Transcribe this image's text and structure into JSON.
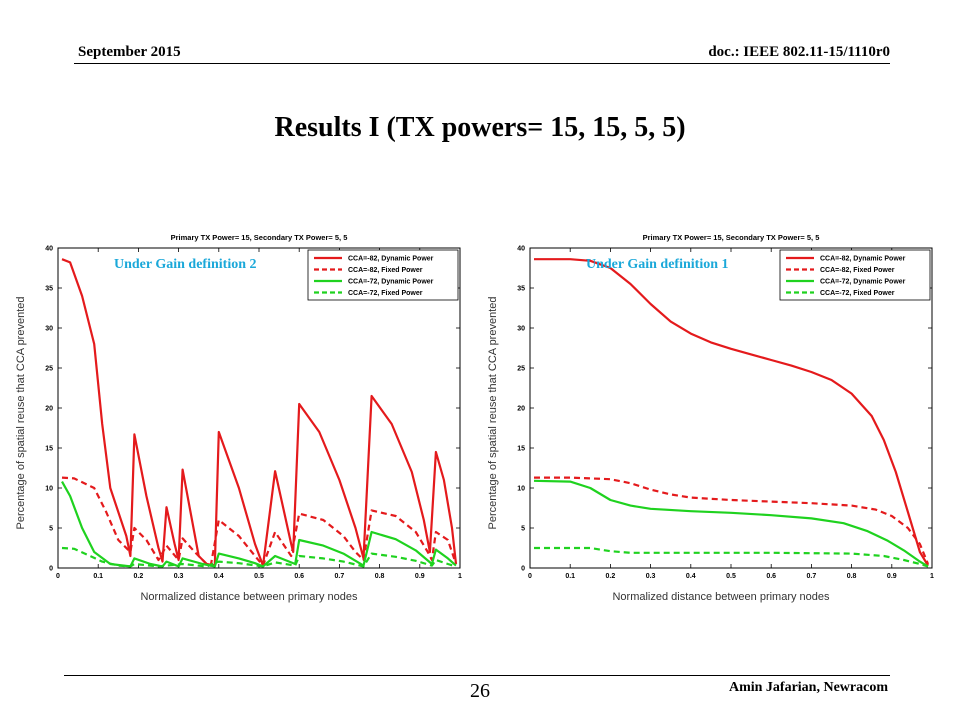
{
  "header": {
    "date": "September 2015",
    "doc_id": "doc.: IEEE 802.11-15/1110r0"
  },
  "slide": {
    "title": "Results I (TX powers= 15, 15, 5, 5)",
    "page_number": "26",
    "author": "Amin Jafarian, Newracom"
  },
  "colors": {
    "red": "#e41a1c",
    "green": "#1fd21f",
    "annotation": "#1ba8d9"
  },
  "chart_data": [
    {
      "type": "line",
      "title": "Primary TX Power= 15, Secondary TX Power= 5, 5",
      "annotation": "Under Gain definition 2",
      "xlabel": "Normalized distance between primary nodes",
      "ylabel": "Percentage of spatial reuse that CCA prevented",
      "xlim": [
        0,
        1
      ],
      "ylim": [
        0,
        40
      ],
      "xticks": [
        "0",
        "0.1",
        "0.2",
        "0.3",
        "0.4",
        "0.5",
        "0.6",
        "0.7",
        "0.8",
        "0.9",
        "1"
      ],
      "yticks": [
        "0",
        "5",
        "10",
        "15",
        "20",
        "25",
        "30",
        "35",
        "40"
      ],
      "legend_position": "top-right",
      "series": [
        {
          "name": "CCA=-82, Dynamic Power",
          "color": "red",
          "dash": "solid",
          "points": [
            [
              0.01,
              38.6
            ],
            [
              0.03,
              38.2
            ],
            [
              0.06,
              34
            ],
            [
              0.09,
              28
            ],
            [
              0.11,
              18
            ],
            [
              0.13,
              10
            ],
            [
              0.17,
              4
            ],
            [
              0.18,
              1.5
            ],
            [
              0.19,
              16.7
            ],
            [
              0.22,
              9
            ],
            [
              0.25,
              2.5
            ],
            [
              0.26,
              0.8
            ],
            [
              0.27,
              7.6
            ],
            [
              0.29,
              3
            ],
            [
              0.3,
              1
            ],
            [
              0.31,
              12.3
            ],
            [
              0.35,
              1.5
            ],
            [
              0.37,
              0.5
            ],
            [
              0.39,
              0.3
            ],
            [
              0.4,
              17
            ],
            [
              0.45,
              10
            ],
            [
              0.49,
              3
            ],
            [
              0.51,
              0.3
            ],
            [
              0.54,
              12.1
            ],
            [
              0.58,
              3
            ],
            [
              0.585,
              2
            ],
            [
              0.6,
              20.5
            ],
            [
              0.65,
              17
            ],
            [
              0.7,
              11
            ],
            [
              0.74,
              5
            ],
            [
              0.76,
              1.2
            ],
            [
              0.78,
              21.5
            ],
            [
              0.83,
              18
            ],
            [
              0.88,
              12
            ],
            [
              0.91,
              6
            ],
            [
              0.925,
              2
            ],
            [
              0.94,
              14.5
            ],
            [
              0.96,
              11
            ],
            [
              0.98,
              5
            ],
            [
              0.99,
              0.5
            ]
          ]
        },
        {
          "name": "CCA=-82, Fixed Power",
          "color": "red",
          "dash": "dashed",
          "points": [
            [
              0.01,
              11.3
            ],
            [
              0.04,
              11.2
            ],
            [
              0.09,
              10
            ],
            [
              0.12,
              7
            ],
            [
              0.15,
              3.5
            ],
            [
              0.18,
              2
            ],
            [
              0.19,
              5
            ],
            [
              0.22,
              3.5
            ],
            [
              0.25,
              1
            ],
            [
              0.27,
              2.8
            ],
            [
              0.3,
              1
            ],
            [
              0.31,
              3.7
            ],
            [
              0.34,
              2
            ],
            [
              0.37,
              0.5
            ],
            [
              0.38,
              0.3
            ],
            [
              0.4,
              6
            ],
            [
              0.45,
              4
            ],
            [
              0.49,
              1.5
            ],
            [
              0.51,
              0.3
            ],
            [
              0.54,
              4.5
            ],
            [
              0.58,
              1.5
            ],
            [
              0.6,
              6.8
            ],
            [
              0.66,
              6
            ],
            [
              0.71,
              4
            ],
            [
              0.74,
              2
            ],
            [
              0.76,
              1
            ],
            [
              0.78,
              7.2
            ],
            [
              0.84,
              6.5
            ],
            [
              0.89,
              4.5
            ],
            [
              0.92,
              2
            ],
            [
              0.93,
              1
            ],
            [
              0.94,
              4.5
            ],
            [
              0.97,
              3.5
            ],
            [
              0.99,
              0.5
            ]
          ]
        },
        {
          "name": "CCA=-72, Dynamic Power",
          "color": "green",
          "dash": "solid",
          "points": [
            [
              0.01,
              10.8
            ],
            [
              0.03,
              9
            ],
            [
              0.06,
              5
            ],
            [
              0.09,
              2
            ],
            [
              0.13,
              0.5
            ],
            [
              0.18,
              0.2
            ],
            [
              0.19,
              1.2
            ],
            [
              0.23,
              0.5
            ],
            [
              0.26,
              0.2
            ],
            [
              0.27,
              0.8
            ],
            [
              0.3,
              0.2
            ],
            [
              0.31,
              1.2
            ],
            [
              0.36,
              0.5
            ],
            [
              0.39,
              0.2
            ],
            [
              0.4,
              1.8
            ],
            [
              0.45,
              1.2
            ],
            [
              0.49,
              0.6
            ],
            [
              0.51,
              0.2
            ],
            [
              0.54,
              1.5
            ],
            [
              0.59,
              0.5
            ],
            [
              0.6,
              3.5
            ],
            [
              0.66,
              2.8
            ],
            [
              0.71,
              1.8
            ],
            [
              0.76,
              0.3
            ],
            [
              0.78,
              4.5
            ],
            [
              0.84,
              3.6
            ],
            [
              0.89,
              2.2
            ],
            [
              0.93,
              0.5
            ],
            [
              0.94,
              2.3
            ],
            [
              0.97,
              1.2
            ],
            [
              0.99,
              0.3
            ]
          ]
        },
        {
          "name": "CCA=-72, Fixed Power",
          "color": "green",
          "dash": "dashed",
          "points": [
            [
              0.01,
              2.5
            ],
            [
              0.04,
              2.4
            ],
            [
              0.08,
              1.5
            ],
            [
              0.11,
              0.8
            ],
            [
              0.15,
              0.3
            ],
            [
              0.18,
              0.2
            ],
            [
              0.19,
              0.5
            ],
            [
              0.25,
              0.2
            ],
            [
              0.27,
              0.3
            ],
            [
              0.31,
              0.5
            ],
            [
              0.37,
              0.2
            ],
            [
              0.4,
              0.8
            ],
            [
              0.45,
              0.6
            ],
            [
              0.51,
              0.2
            ],
            [
              0.54,
              0.7
            ],
            [
              0.59,
              0.3
            ],
            [
              0.6,
              1.5
            ],
            [
              0.66,
              1.2
            ],
            [
              0.71,
              0.8
            ],
            [
              0.76,
              0.2
            ],
            [
              0.78,
              1.8
            ],
            [
              0.84,
              1.4
            ],
            [
              0.89,
              0.9
            ],
            [
              0.93,
              0.3
            ],
            [
              0.94,
              1
            ],
            [
              0.97,
              0.5
            ],
            [
              0.99,
              0.2
            ]
          ]
        }
      ]
    },
    {
      "type": "line",
      "title": "Primary TX Power= 15, Secondary TX Power= 5, 5",
      "annotation": "Under Gain definition 1",
      "xlabel": "Normalized distance between primary nodes",
      "ylabel": "Percentage of spatial reuse that CCA prevented",
      "xlim": [
        0,
        1
      ],
      "ylim": [
        0,
        40
      ],
      "xticks": [
        "0",
        "0.1",
        "0.2",
        "0.3",
        "0.4",
        "0.5",
        "0.6",
        "0.7",
        "0.8",
        "0.9",
        "1"
      ],
      "yticks": [
        "0",
        "5",
        "10",
        "15",
        "20",
        "25",
        "30",
        "35",
        "40"
      ],
      "legend_position": "top-right",
      "series": [
        {
          "name": "CCA=-82, Dynamic Power",
          "color": "red",
          "dash": "solid",
          "points": [
            [
              0.01,
              38.6
            ],
            [
              0.1,
              38.6
            ],
            [
              0.15,
              38.4
            ],
            [
              0.2,
              37.5
            ],
            [
              0.25,
              35.5
            ],
            [
              0.3,
              33
            ],
            [
              0.35,
              30.8
            ],
            [
              0.4,
              29.3
            ],
            [
              0.45,
              28.2
            ],
            [
              0.5,
              27.4
            ],
            [
              0.55,
              26.7
            ],
            [
              0.6,
              26
            ],
            [
              0.65,
              25.3
            ],
            [
              0.7,
              24.5
            ],
            [
              0.75,
              23.5
            ],
            [
              0.8,
              21.8
            ],
            [
              0.85,
              19
            ],
            [
              0.88,
              16
            ],
            [
              0.91,
              12
            ],
            [
              0.94,
              7
            ],
            [
              0.97,
              2
            ],
            [
              0.99,
              0.3
            ]
          ]
        },
        {
          "name": "CCA=-82, Fixed Power",
          "color": "red",
          "dash": "dashed",
          "points": [
            [
              0.01,
              11.3
            ],
            [
              0.1,
              11.3
            ],
            [
              0.2,
              11.1
            ],
            [
              0.25,
              10.6
            ],
            [
              0.3,
              9.8
            ],
            [
              0.35,
              9.2
            ],
            [
              0.4,
              8.8
            ],
            [
              0.5,
              8.5
            ],
            [
              0.6,
              8.3
            ],
            [
              0.7,
              8.1
            ],
            [
              0.8,
              7.8
            ],
            [
              0.86,
              7.3
            ],
            [
              0.9,
              6.5
            ],
            [
              0.94,
              5
            ],
            [
              0.97,
              3
            ],
            [
              0.99,
              0.5
            ]
          ]
        },
        {
          "name": "CCA=-72, Dynamic Power",
          "color": "green",
          "dash": "solid",
          "points": [
            [
              0.01,
              10.9
            ],
            [
              0.1,
              10.8
            ],
            [
              0.15,
              10
            ],
            [
              0.2,
              8.5
            ],
            [
              0.25,
              7.8
            ],
            [
              0.3,
              7.4
            ],
            [
              0.4,
              7.1
            ],
            [
              0.5,
              6.9
            ],
            [
              0.6,
              6.6
            ],
            [
              0.7,
              6.2
            ],
            [
              0.78,
              5.6
            ],
            [
              0.84,
              4.6
            ],
            [
              0.89,
              3.4
            ],
            [
              0.93,
              2.2
            ],
            [
              0.97,
              0.8
            ],
            [
              0.99,
              0.2
            ]
          ]
        },
        {
          "name": "CCA=-72, Fixed Power",
          "color": "green",
          "dash": "dashed",
          "points": [
            [
              0.01,
              2.5
            ],
            [
              0.15,
              2.5
            ],
            [
              0.2,
              2.1
            ],
            [
              0.25,
              1.9
            ],
            [
              0.4,
              1.9
            ],
            [
              0.6,
              1.9
            ],
            [
              0.8,
              1.8
            ],
            [
              0.88,
              1.5
            ],
            [
              0.93,
              1.0
            ],
            [
              0.97,
              0.5
            ],
            [
              0.99,
              0.2
            ]
          ]
        }
      ]
    }
  ]
}
